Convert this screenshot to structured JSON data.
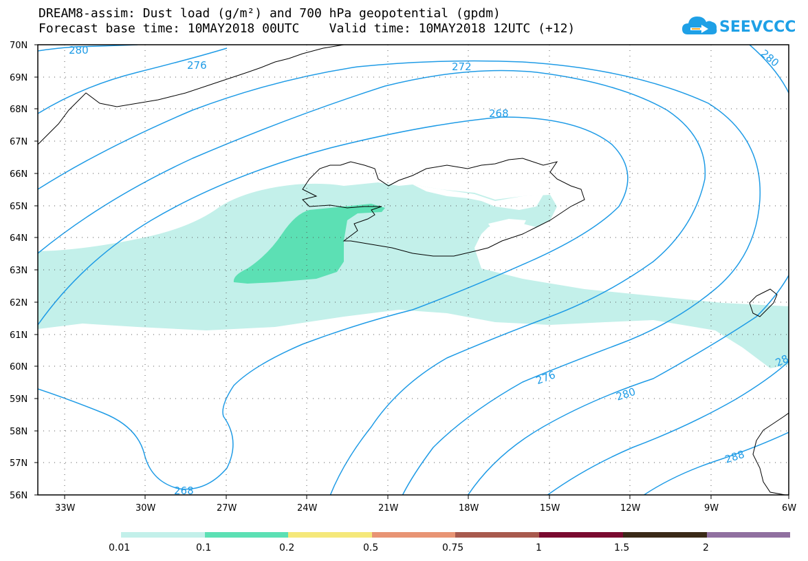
{
  "title_line1": "DREAM8-assim: Dust load (g/m²) and 700 hPa geopotential (gpdm)",
  "title_line2": "Forecast base time: 10MAY2018 00UTC    Valid time: 10MAY2018 12UTC (+12)",
  "logo_text": "SEEVCCC",
  "axes": {
    "lat_labels": [
      "70N",
      "69N",
      "68N",
      "67N",
      "66N",
      "65N",
      "64N",
      "63N",
      "62N",
      "61N",
      "60N",
      "59N",
      "58N",
      "57N",
      "56N"
    ],
    "lon_labels": [
      "33W",
      "30W",
      "27W",
      "24W",
      "21W",
      "18W",
      "15W",
      "12W",
      "9W",
      "6W"
    ]
  },
  "contour_labels": {
    "c280_top": "280",
    "c276_top": "276",
    "c272": "272",
    "c268_top": "268",
    "c280_right": "280",
    "c268_bottom": "268",
    "c276_bottom": "276",
    "c280_bottom": "280",
    "c288": "288",
    "c28_edge": "28"
  },
  "legend": {
    "labels": [
      "0.01",
      "0.1",
      "0.2",
      "0.5",
      "0.75",
      "1",
      "1.5",
      "2"
    ],
    "colors": [
      "#c3f0ea",
      "#5ce0b4",
      "#f5e87a",
      "#e89474",
      "#a85a4e",
      "#7a0a30",
      "#3a2a18",
      "#9070a0"
    ]
  },
  "colors": {
    "contour": "#1e9be6",
    "dust_low": "#c3f0ea",
    "dust_mid": "#5ce0b4"
  }
}
